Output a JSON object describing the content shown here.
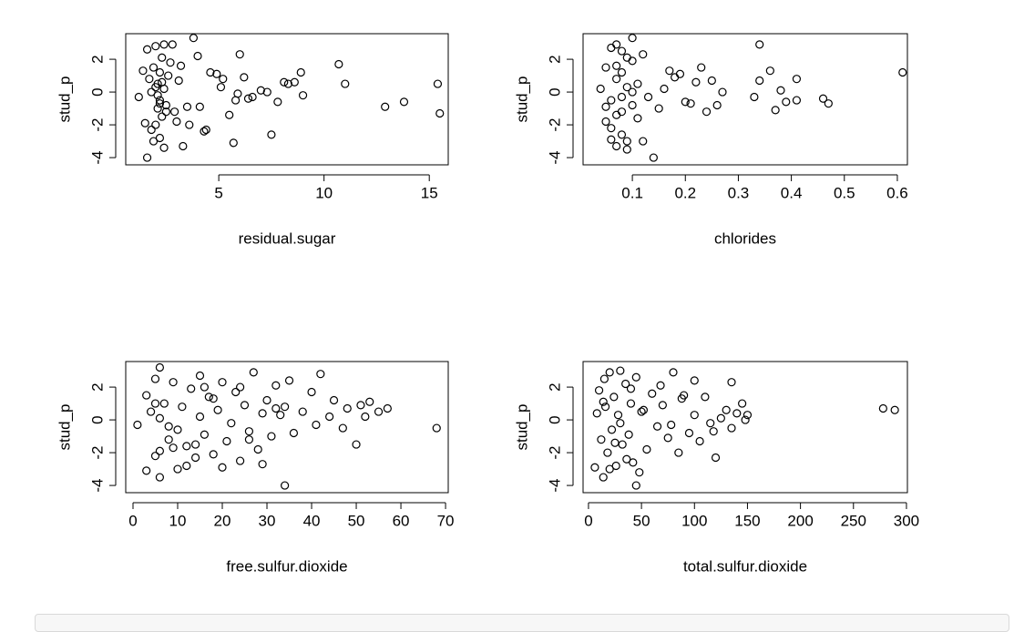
{
  "chart_data": [
    {
      "type": "scatter",
      "x_label": "residual.sugar",
      "y_label": "stud_p",
      "color": "#000000",
      "xlim": [
        0.58,
        15.9
      ],
      "ylim": [
        -4.44,
        3.56
      ],
      "xticks": [
        5,
        10,
        15
      ],
      "yticks": [
        -4,
        -2,
        0,
        2
      ],
      "x": [
        1.2,
        1.6,
        1.8,
        1.9,
        2.0,
        2.0,
        2.1,
        2.1,
        2.2,
        2.2,
        2.3,
        2.3,
        2.4,
        2.5,
        2.6,
        1.9,
        1.6,
        2.2,
        2.4,
        1.7,
        2.1,
        2.3,
        1.4,
        2.8,
        3.0,
        3.2,
        3.5,
        3.8,
        4.0,
        4.3,
        4.6,
        5.1,
        5.5,
        5.8,
        6.0,
        6.2,
        6.4,
        7.0,
        7.3,
        7.5,
        7.8,
        8.1,
        8.3,
        8.6,
        8.9,
        9.0,
        10.7,
        11.0,
        12.9,
        13.8,
        15.4,
        15.5,
        5.7,
        3.3,
        1.8,
        2.0,
        2.2,
        2.5,
        2.7,
        3.1,
        3.6,
        4.1,
        4.4,
        4.9,
        5.2,
        5.9,
        6.6,
        2.4,
        1.5,
        2.9
      ],
      "values": [
        -0.3,
        2.6,
        -2.3,
        1.5,
        2.8,
        -2.0,
        0.5,
        -1.0,
        1.2,
        -0.5,
        2.1,
        -1.5,
        0.2,
        -0.8,
        1.0,
        -3.0,
        -4.0,
        -2.8,
        2.9,
        0.8,
        -0.2,
        0.6,
        1.3,
        2.9,
        -1.8,
        1.6,
        -0.9,
        3.3,
        2.2,
        -2.4,
        1.2,
        0.3,
        -1.4,
        -0.5,
        2.3,
        0.9,
        -0.4,
        0.1,
        0.0,
        -2.6,
        -0.6,
        0.6,
        0.5,
        0.6,
        1.2,
        -0.2,
        1.7,
        0.5,
        -0.9,
        -0.6,
        0.5,
        -1.3,
        -3.1,
        -3.3,
        0.0,
        0.3,
        -0.7,
        -1.2,
        1.8,
        0.7,
        -2.0,
        -0.9,
        -2.3,
        1.1,
        0.8,
        -0.1,
        -0.3,
        -3.4,
        -1.9,
        -1.2
      ]
    },
    {
      "type": "scatter",
      "x_label": "chlorides",
      "y_label": "stud_p",
      "color": "#000000",
      "xlim": [
        0.007,
        0.619
      ],
      "ylim": [
        -4.44,
        3.56
      ],
      "xticks": [
        0.1,
        0.2,
        0.3,
        0.4,
        0.5,
        0.6
      ],
      "yticks": [
        -4,
        -2,
        0,
        2
      ],
      "x": [
        0.04,
        0.05,
        0.05,
        0.06,
        0.06,
        0.06,
        0.07,
        0.07,
        0.07,
        0.08,
        0.08,
        0.08,
        0.09,
        0.09,
        0.09,
        0.1,
        0.1,
        0.11,
        0.11,
        0.12,
        0.06,
        0.07,
        0.08,
        0.05,
        0.09,
        0.1,
        0.08,
        0.07,
        0.61,
        0.34,
        0.34,
        0.36,
        0.37,
        0.41,
        0.41,
        0.46,
        0.47,
        0.38,
        0.39,
        0.33,
        0.27,
        0.25,
        0.23,
        0.22,
        0.24,
        0.26,
        0.2,
        0.14,
        0.12,
        0.17,
        0.19,
        0.15,
        0.1,
        0.13,
        0.16,
        0.18,
        0.21
      ],
      "values": [
        0.2,
        1.5,
        -1.8,
        2.7,
        -0.5,
        -2.9,
        0.8,
        2.9,
        -3.3,
        1.2,
        -1.2,
        -2.6,
        0.3,
        2.1,
        -3.0,
        -0.8,
        1.9,
        0.5,
        -1.6,
        2.3,
        -2.2,
        1.6,
        -0.3,
        -0.9,
        -3.5,
        0.0,
        2.5,
        -1.4,
        1.2,
        2.9,
        0.7,
        1.3,
        -1.1,
        0.8,
        -0.5,
        -0.4,
        -0.7,
        0.1,
        -0.6,
        -0.3,
        0.0,
        0.7,
        1.5,
        0.6,
        -1.2,
        -0.8,
        -0.6,
        -4.0,
        -3.0,
        1.3,
        1.1,
        -1.0,
        3.3,
        -0.3,
        0.2,
        0.9,
        -0.7
      ]
    },
    {
      "type": "scatter",
      "x_label": "free.sulfur.dioxide",
      "y_label": "stud_p",
      "color": "#000000",
      "xlim": [
        -1.63,
        70.6
      ],
      "ylim": [
        -4.44,
        3.56
      ],
      "xticks": [
        0,
        10,
        20,
        30,
        40,
        50,
        60,
        70
      ],
      "yticks": [
        -4,
        -2,
        0,
        2
      ],
      "x": [
        1,
        3,
        3,
        4,
        5,
        5,
        6,
        6,
        7,
        8,
        9,
        10,
        11,
        12,
        13,
        14,
        15,
        15,
        16,
        17,
        18,
        19,
        20,
        21,
        22,
        23,
        24,
        25,
        26,
        27,
        28,
        29,
        30,
        31,
        32,
        33,
        34,
        35,
        36,
        38,
        40,
        41,
        42,
        44,
        45,
        47,
        48,
        50,
        51,
        52,
        53,
        55,
        57,
        68,
        6,
        10,
        14,
        18,
        24,
        29,
        34,
        6,
        12,
        16,
        20,
        26,
        32,
        8,
        5,
        9
      ],
      "values": [
        -0.3,
        1.5,
        -3.1,
        0.5,
        -2.2,
        2.5,
        3.2,
        -3.5,
        1.0,
        -1.2,
        2.3,
        -0.6,
        0.8,
        -2.8,
        1.9,
        -1.5,
        2.7,
        0.2,
        -0.9,
        1.4,
        -2.1,
        0.6,
        2.3,
        -1.3,
        -0.2,
        1.7,
        -2.5,
        0.9,
        -0.7,
        2.9,
        -1.8,
        0.4,
        1.2,
        -1.0,
        2.1,
        0.3,
        -4.0,
        2.4,
        -0.8,
        0.5,
        1.7,
        -0.3,
        2.8,
        0.2,
        1.2,
        -0.5,
        0.7,
        -1.5,
        0.9,
        0.2,
        1.1,
        0.5,
        0.7,
        -0.5,
        -1.9,
        -3.0,
        -2.3,
        1.3,
        2.0,
        -2.7,
        0.8,
        0.1,
        -1.6,
        2.0,
        -2.9,
        -1.2,
        0.7,
        -0.4,
        1.0,
        -1.7
      ]
    },
    {
      "type": "scatter",
      "x_label": "total.sulfur.dioxide",
      "y_label": "stud_p",
      "color": "#000000",
      "xlim": [
        -5.1,
        300.9
      ],
      "ylim": [
        -4.44,
        3.56
      ],
      "xticks": [
        0,
        50,
        100,
        150,
        200,
        250,
        300
      ],
      "yticks": [
        -4,
        -2,
        0,
        2
      ],
      "x": [
        6,
        8,
        10,
        12,
        14,
        15,
        16,
        18,
        20,
        22,
        24,
        26,
        28,
        30,
        32,
        35,
        38,
        40,
        42,
        45,
        48,
        50,
        55,
        60,
        65,
        70,
        75,
        80,
        85,
        90,
        95,
        100,
        105,
        110,
        115,
        120,
        125,
        130,
        135,
        140,
        145,
        150,
        278,
        289,
        45,
        135,
        100,
        14,
        25,
        36,
        52,
        68,
        78,
        88,
        118,
        148,
        20,
        30,
        40
      ],
      "values": [
        -2.9,
        0.4,
        1.8,
        -1.2,
        -3.5,
        2.5,
        0.8,
        -2.0,
        2.9,
        -0.6,
        1.4,
        -2.8,
        0.3,
        3.0,
        -1.5,
        2.2,
        -0.9,
        1.0,
        -2.6,
        2.6,
        -3.2,
        0.5,
        -1.8,
        1.6,
        -0.4,
        0.9,
        -1.1,
        2.9,
        -2.0,
        1.5,
        -0.8,
        0.3,
        -1.3,
        1.4,
        -0.2,
        -2.3,
        0.1,
        0.6,
        -0.5,
        0.4,
        1.0,
        0.3,
        0.7,
        0.6,
        -4.0,
        2.3,
        2.4,
        1.1,
        -1.4,
        -2.4,
        0.6,
        2.1,
        -0.3,
        1.3,
        -0.7,
        0.0,
        -3.0,
        -0.2,
        1.9
      ]
    }
  ]
}
